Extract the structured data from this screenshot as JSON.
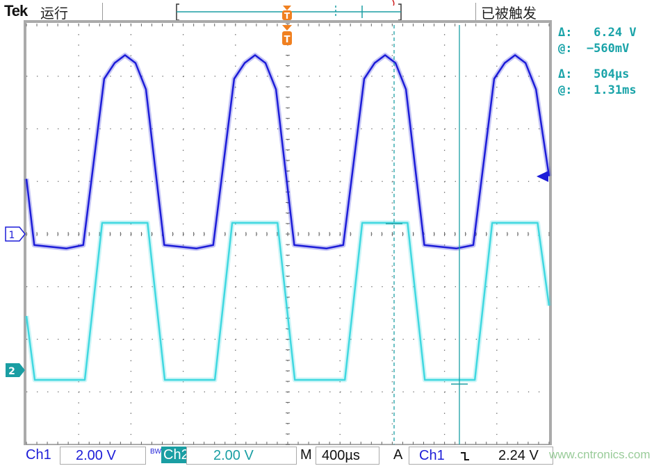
{
  "header": {
    "brand": "Tek",
    "run_state": "运行",
    "trigger_state": "已被触发"
  },
  "readouts": {
    "voltage_delta": "Δ:   6.24 V",
    "voltage_at": "@:  −560mV",
    "time_delta": "Δ:   504µs",
    "time_at": "@:   1.31ms"
  },
  "markers": {
    "ch1": "1",
    "ch2": "2",
    "trigger": "T"
  },
  "footer": {
    "ch1_label": "Ch1",
    "ch1_scale": "2.00 V",
    "bw_label": "BW",
    "ch2_label": "Ch2",
    "ch2_scale": "2.00 V",
    "timebase_label": "M",
    "timebase": "400µs",
    "trigger_label": "A",
    "trigger_source": "Ch1",
    "trigger_slope": "falling-edge-icon",
    "trigger_level": "2.24 V",
    "watermark": "www.cntronics.com"
  },
  "colors": {
    "ch1": "#1c1cd8",
    "ch2": "#3fd8e0",
    "cursor": "#1a9ea3",
    "trigger": "#f08020",
    "background": "#ffffff"
  },
  "chart_data": {
    "type": "line",
    "grid": true,
    "x_unit": "ms",
    "xlim": [
      0,
      4.0
    ],
    "x_per_div": 0.4,
    "y_unit": "V",
    "y_per_div": 2.0,
    "series": [
      {
        "name": "Ch1",
        "color": "#1c1cd8",
        "t": [
          0,
          0.06,
          0.305,
          0.435,
          0.595,
          0.675,
          0.755,
          0.835,
          0.915,
          1.055,
          1.3,
          1.43,
          1.59,
          1.67,
          1.75,
          1.83,
          1.91,
          2.05,
          2.295,
          2.425,
          2.585,
          2.665,
          2.745,
          2.825,
          2.905,
          3.045,
          3.29,
          3.42,
          3.58,
          3.66,
          3.74,
          3.82,
          3.9,
          4.0
        ],
        "v": [
          2.1,
          -0.42,
          -0.55,
          -0.42,
          5.9,
          6.5,
          6.8,
          6.5,
          5.5,
          -0.42,
          -0.55,
          -0.42,
          5.9,
          6.5,
          6.8,
          6.5,
          5.5,
          -0.42,
          -0.55,
          -0.42,
          5.9,
          6.5,
          6.8,
          6.5,
          5.5,
          -0.42,
          -0.55,
          -0.42,
          5.9,
          6.5,
          6.8,
          6.5,
          5.5,
          2.2
        ]
      },
      {
        "name": "Ch2",
        "color": "#3fd8e0",
        "t": [
          0,
          0.064,
          0.447,
          0.58,
          0.927,
          1.059,
          1.442,
          1.575,
          1.922,
          2.054,
          2.437,
          2.57,
          2.917,
          3.049,
          3.432,
          3.565,
          3.912,
          4.0
        ],
        "v": [
          2.06,
          -0.37,
          -0.37,
          5.6,
          5.6,
          -0.37,
          -0.37,
          5.6,
          5.6,
          -0.37,
          -0.37,
          5.6,
          5.6,
          -0.37,
          -0.37,
          5.6,
          5.6,
          2.45
        ]
      }
    ],
    "cursors": {
      "time_a": 2.814,
      "time_b": 3.314
    }
  }
}
